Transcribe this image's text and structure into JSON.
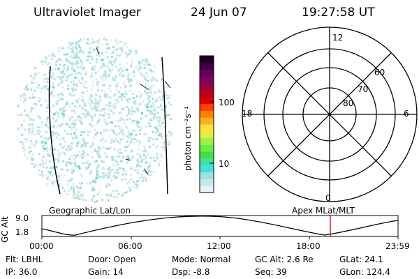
{
  "header": {
    "instrument": "Ultraviolet Imager",
    "date": "24 Jun 07",
    "time": "19:27:58 UT"
  },
  "colorbar": {
    "label": "photon cm⁻²s⁻¹",
    "ticks": [
      "100",
      "10"
    ],
    "colors": [
      "#e8f2f2",
      "#c8e8e8",
      "#a0e0e0",
      "#40e0e0",
      "#40e0a0",
      "#40e040",
      "#60f040",
      "#a0f040",
      "#e0f040",
      "#ffe040",
      "#ffb020",
      "#ff8000",
      "#ff4000",
      "#e00000",
      "#c00020",
      "#a00040",
      "#800060",
      "#600060",
      "#400040",
      "#200020"
    ]
  },
  "polar_plot": {
    "top_label": "12",
    "bottom_label": "0",
    "left_label": "18",
    "right_label": "6",
    "ring_labels": [
      "60",
      "70",
      "80"
    ]
  },
  "timeline": {
    "left_title": "Geographic Lat/Lon",
    "right_title": "Apex  MLat/MLT",
    "y_label": "GC Alt",
    "y_ticks": [
      "9.0",
      "1.8"
    ],
    "x_ticks": [
      "00:00",
      "06:00",
      "12:00",
      "18:00",
      "23:59"
    ],
    "marker_color": "#cc0000"
  },
  "footer": {
    "filter": "Flt: LBHL",
    "door": "Door: Open",
    "mode": "Mode: Normal",
    "gc_alt": "GC Alt: 2.6 Re",
    "glat": "GLat:  24.1",
    "ip": "IP: 36.0",
    "gain": "Gain: 14",
    "dsp": "Dsp:   -8.8",
    "seq": "Seq: 39",
    "glon": "GLon: 124.4"
  }
}
